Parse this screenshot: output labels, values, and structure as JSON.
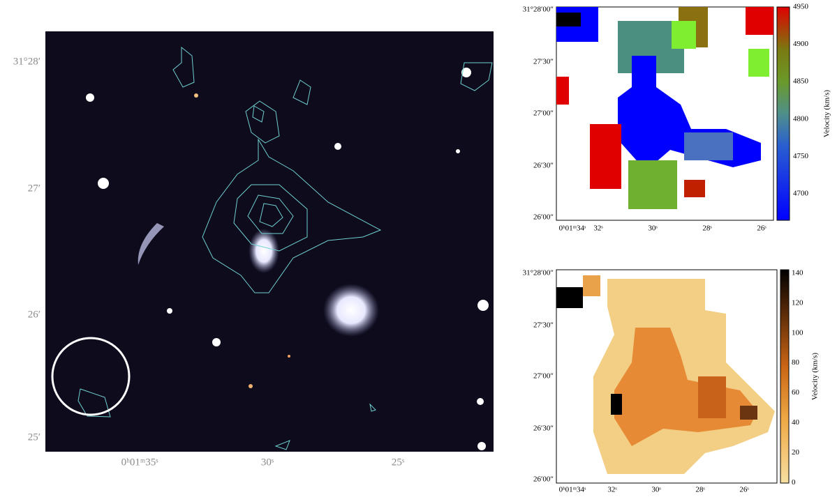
{
  "optical_panel": {
    "y_labels": [
      "31°28′",
      "27′",
      "26′",
      "25′"
    ],
    "x_labels": [
      "0ʰ01ᵐ35ˢ",
      "30ˢ",
      "25ˢ"
    ]
  },
  "velocity_panel": {
    "y_labels": [
      "31°28′00″",
      "27′30″",
      "27′00″",
      "26′30″",
      "26′00″"
    ],
    "x_labels": [
      "0ʰ01ᵐ34ˢ",
      "32ˢ",
      "30ˢ",
      "28ˢ",
      "26ˢ"
    ],
    "colorbar_label": "Velocity (km/s)",
    "colorbar_ticks": [
      4950,
      4900,
      4850,
      4800,
      4750,
      4700
    ]
  },
  "dispersion_panel": {
    "y_labels": [
      "31°28′00″",
      "27′30″",
      "27′00″",
      "26′30″",
      "26′00″"
    ],
    "x_labels": [
      "0ʰ01ᵐ34ˢ",
      "32ˢ",
      "30ˢ",
      "28ˢ",
      "26ˢ"
    ],
    "colorbar_label": "Velocity (km/s)",
    "colorbar_ticks": [
      140,
      120,
      100,
      80,
      60,
      40,
      20,
      0
    ]
  }
}
